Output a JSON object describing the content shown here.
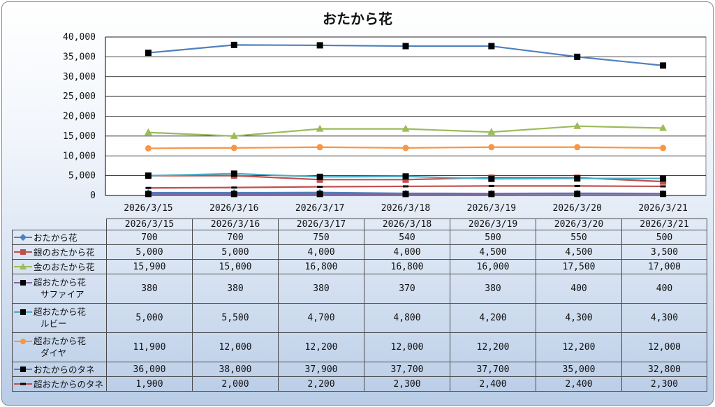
{
  "chart_data": {
    "type": "line",
    "title": "おたから花",
    "categories": [
      "2026/3/15",
      "2026/3/16",
      "2026/3/17",
      "2026/3/18",
      "2026/3/19",
      "2026/3/20",
      "2026/3/21"
    ],
    "ylim": [
      0,
      40000
    ],
    "yticks": [
      "0",
      "5,000",
      "10,000",
      "15,000",
      "20,000",
      "25,000",
      "30,000",
      "35,000",
      "40,000"
    ],
    "grid": true,
    "legend_placement": "data-table",
    "series": [
      {
        "name": "おたから花",
        "name_line2": "",
        "color": "#4f81bd",
        "marker": "diamond",
        "values": [
          700,
          700,
          750,
          540,
          500,
          550,
          500
        ],
        "labels": [
          "700",
          "700",
          "750",
          "540",
          "500",
          "550",
          "500"
        ]
      },
      {
        "name": "銀のおたから花",
        "name_line2": "",
        "color": "#c0504d",
        "marker": "square",
        "values": [
          5000,
          5000,
          4000,
          4000,
          4500,
          4500,
          3500
        ],
        "labels": [
          "5,000",
          "5,000",
          "4,000",
          "4,000",
          "4,500",
          "4,500",
          "3,500"
        ]
      },
      {
        "name": "金のおたから花",
        "name_line2": "",
        "color": "#9bbb59",
        "marker": "triangle",
        "values": [
          15900,
          15000,
          16800,
          16800,
          16000,
          17500,
          17000
        ],
        "labels": [
          "15,900",
          "15,000",
          "16,800",
          "16,800",
          "16,000",
          "17,500",
          "17,000"
        ]
      },
      {
        "name": "超おたから花",
        "name_line2": "サファイア",
        "color": "#8064a2",
        "marker": "blacksquare",
        "values": [
          380,
          380,
          380,
          370,
          380,
          400,
          400
        ],
        "labels": [
          "380",
          "380",
          "380",
          "370",
          "380",
          "400",
          "400"
        ]
      },
      {
        "name": "超おたから花",
        "name_line2": "ルビー",
        "color": "#4bacc6",
        "marker": "blacksquare",
        "values": [
          5000,
          5500,
          4700,
          4800,
          4200,
          4300,
          4300
        ],
        "labels": [
          "5,000",
          "5,500",
          "4,700",
          "4,800",
          "4,200",
          "4,300",
          "4,300"
        ]
      },
      {
        "name": "超おたから花",
        "name_line2": "ダイヤ",
        "color": "#f79646",
        "marker": "circle",
        "values": [
          11900,
          12000,
          12200,
          12000,
          12200,
          12200,
          12000
        ],
        "labels": [
          "11,900",
          "12,000",
          "12,200",
          "12,000",
          "12,200",
          "12,200",
          "12,000"
        ]
      },
      {
        "name": "おたからのタネ",
        "name_line2": "",
        "color": "#4f81bd",
        "marker": "blacksquare",
        "values": [
          36000,
          38000,
          37900,
          37700,
          37700,
          35000,
          32800
        ],
        "labels": [
          "36,000",
          "38,000",
          "37,900",
          "37,700",
          "37,700",
          "35,000",
          "32,800"
        ]
      },
      {
        "name": "超おたからのタネ",
        "name_line2": "",
        "color": "#c0504d",
        "marker": "dash",
        "values": [
          1900,
          2000,
          2200,
          2300,
          2400,
          2400,
          2300
        ],
        "labels": [
          "1,900",
          "2,000",
          "2,200",
          "2,300",
          "2,400",
          "2,400",
          "2,300"
        ]
      }
    ]
  }
}
